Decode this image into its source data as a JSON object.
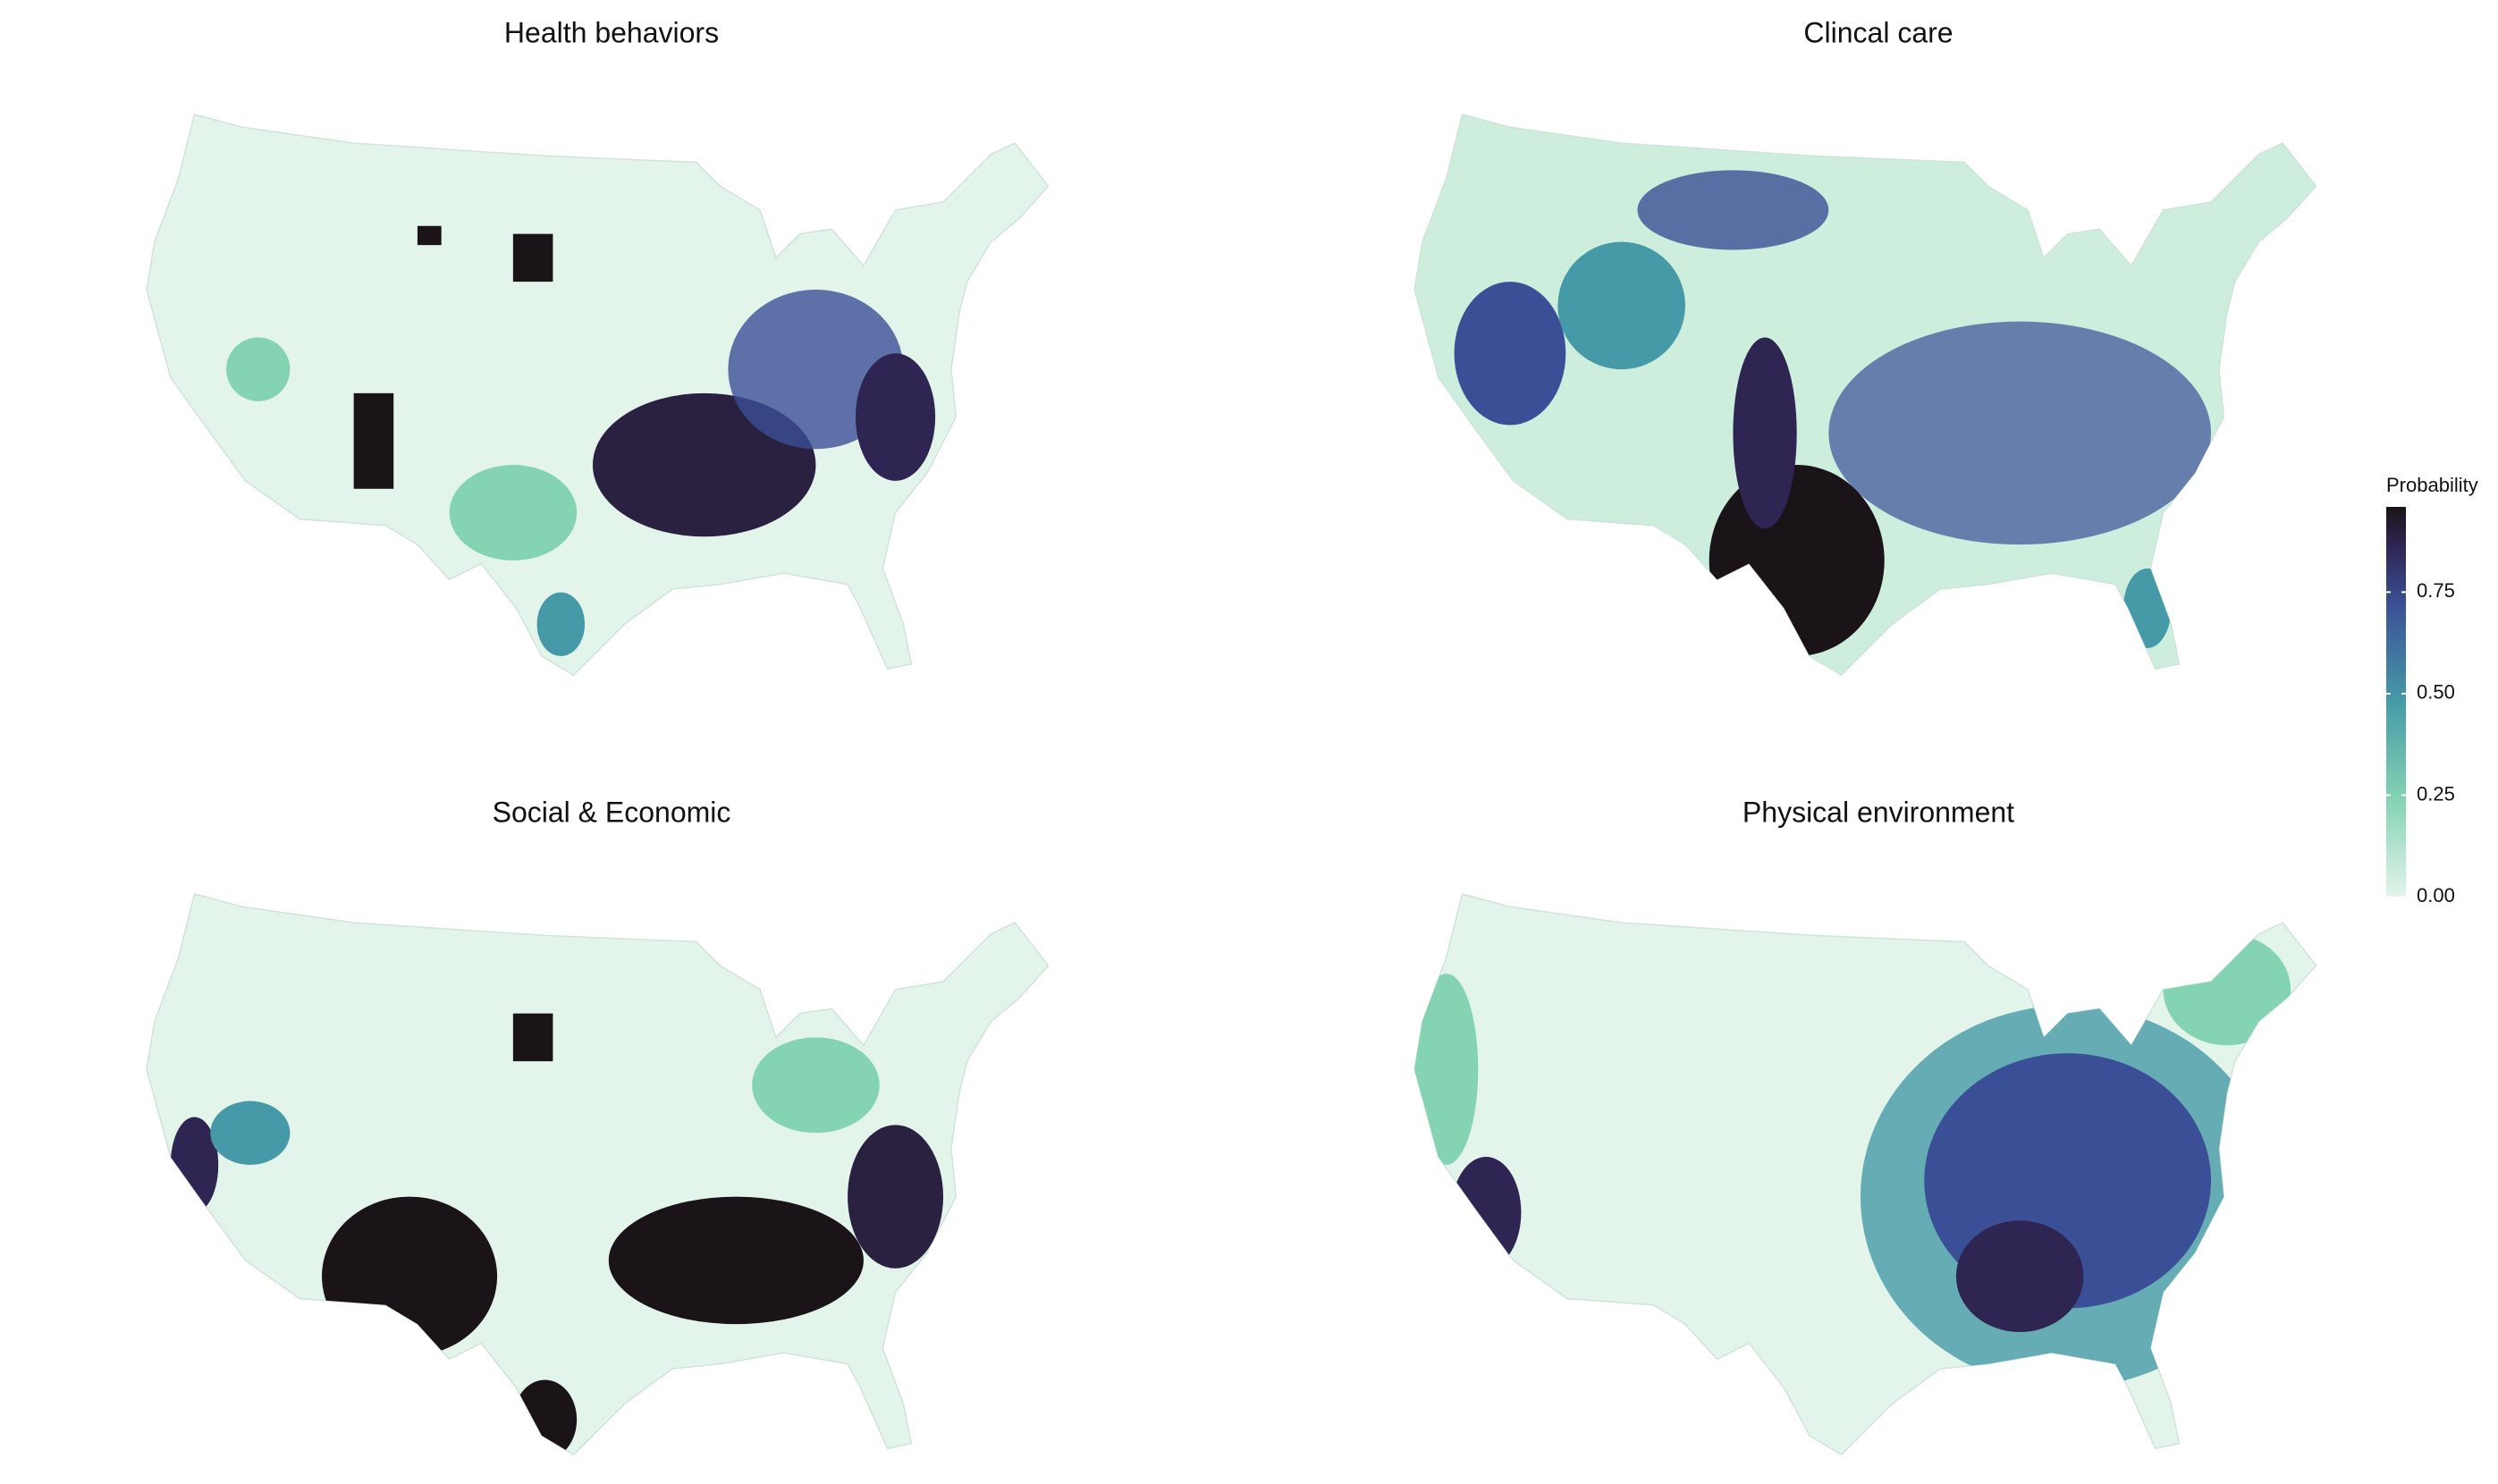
{
  "panels": [
    {
      "title": "Health behaviors"
    },
    {
      "title": "Clincal care"
    },
    {
      "title": "Social & Economic"
    },
    {
      "title": "Physical environment"
    }
  ],
  "legend": {
    "title": "Probability",
    "lim": [
      0,
      0.96
    ],
    "ticks": [
      {
        "value": 0,
        "label": "0.00"
      },
      {
        "value": 0.25,
        "label": "0.25"
      },
      {
        "value": 0.5,
        "label": "0.50"
      },
      {
        "value": 0.75,
        "label": "0.75"
      }
    ]
  }
}
